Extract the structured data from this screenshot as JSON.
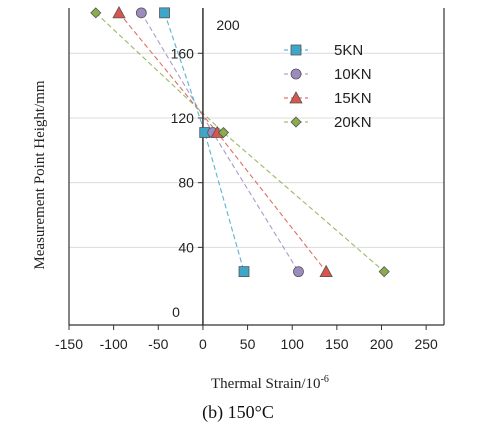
{
  "chart_data": {
    "type": "scatter",
    "caption": "(b) 150°C",
    "xlabel": "Thermal Strain/10",
    "xlabel_exponent": "-6",
    "ylabel": "Measurement Point Height/mm",
    "xlim": [
      -150,
      270
    ],
    "ylim": [
      -8,
      188
    ],
    "x_ticks": [
      -150,
      -100,
      -50,
      0,
      50,
      100,
      150,
      200,
      250
    ],
    "y_ticks": [
      40,
      80,
      120,
      160
    ],
    "origin_label": "0",
    "top_label": "200",
    "legend_position": "top-right",
    "grid": true,
    "series": [
      {
        "name": "5KN",
        "marker": "square",
        "color": "#3ea6c8",
        "x": [
          -43,
          2,
          46
        ],
        "y": [
          185,
          111,
          25
        ]
      },
      {
        "name": "10KN",
        "marker": "circle",
        "color": "#9d8bc0",
        "x": [
          -69,
          11,
          107
        ],
        "y": [
          185,
          111,
          25
        ]
      },
      {
        "name": "15KN",
        "marker": "triangle",
        "color": "#d8564c",
        "x": [
          -94,
          16,
          138
        ],
        "y": [
          185,
          111,
          25
        ]
      },
      {
        "name": "20KN",
        "marker": "diamond",
        "color": "#88ad4a",
        "x": [
          -120,
          23,
          203
        ],
        "y": [
          185,
          111,
          25
        ]
      }
    ]
  }
}
